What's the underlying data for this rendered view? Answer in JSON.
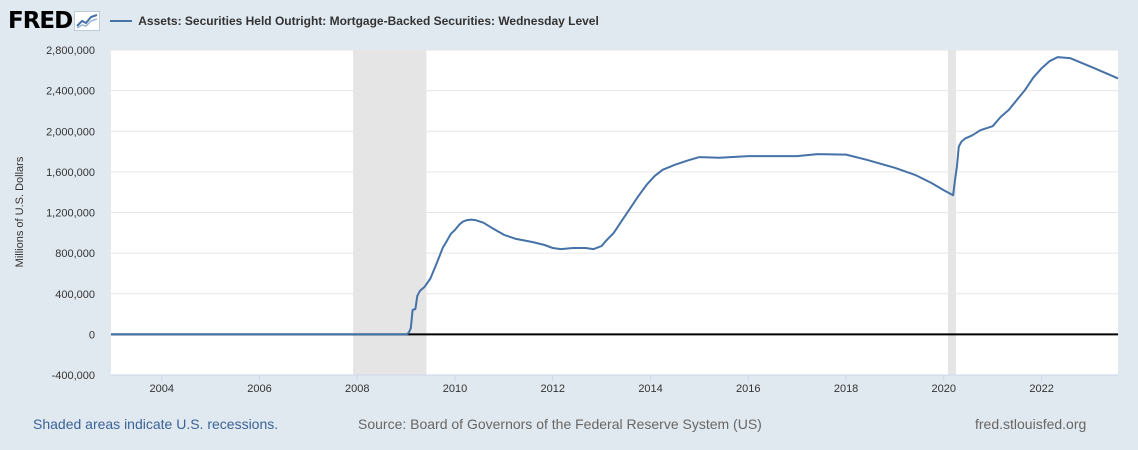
{
  "header": {
    "logo_text": "FRED",
    "logo_icon": "fred-chart-logo-icon"
  },
  "footer": {
    "recession_note": "Shaded areas indicate U.S. recessions.",
    "source": "Source: Board of Governors of the Federal Reserve System (US)",
    "site": "fred.stlouisfed.org"
  },
  "colors": {
    "series": "#4572a7",
    "background": "#e1e9f0",
    "plot_bg": "#ffffff",
    "recession": "#e5e5e5",
    "grid": "#e6e6e6",
    "zero_line": "#000000"
  },
  "chart_data": {
    "type": "line",
    "title": "",
    "xlabel": "",
    "ylabel": "Millions of U.S. Dollars",
    "xlim": [
      "2002-12-18",
      "2023-07-26"
    ],
    "ylim": [
      -400000,
      2800000
    ],
    "y_ticks": [
      -400000,
      0,
      400000,
      800000,
      1200000,
      1600000,
      2000000,
      2400000,
      2800000
    ],
    "y_tick_labels": [
      "-400,000",
      "0",
      "400,000",
      "800,000",
      "1,200,000",
      "1,600,000",
      "2,000,000",
      "2,400,000",
      "2,800,000"
    ],
    "x_ticks": [
      "2004-01-01",
      "2006-01-01",
      "2008-01-01",
      "2010-01-01",
      "2012-01-01",
      "2014-01-01",
      "2016-01-01",
      "2018-01-01",
      "2020-01-01",
      "2022-01-01"
    ],
    "x_tick_labels": [
      "2004",
      "2006",
      "2008",
      "2010",
      "2012",
      "2014",
      "2016",
      "2018",
      "2020",
      "2022"
    ],
    "grid": true,
    "legend": "top-left",
    "recessions": [
      [
        "2007-12-01",
        "2009-06-01"
      ],
      [
        "2020-02-01",
        "2020-04-01"
      ]
    ],
    "series": [
      {
        "name": "Assets: Securities Held Outright: Mortgage-Backed Securities: Wednesday Level",
        "color": "#4572a7",
        "points": [
          [
            "2002-12-18",
            0
          ],
          [
            "2009-01-07",
            0
          ],
          [
            "2009-01-21",
            20000
          ],
          [
            "2009-02-04",
            60000
          ],
          [
            "2009-02-18",
            240000
          ],
          [
            "2009-03-11",
            250000
          ],
          [
            "2009-03-25",
            380000
          ],
          [
            "2009-04-15",
            430000
          ],
          [
            "2009-05-20",
            470000
          ],
          [
            "2009-07-01",
            550000
          ],
          [
            "2009-08-01",
            650000
          ],
          [
            "2009-09-01",
            750000
          ],
          [
            "2009-10-01",
            850000
          ],
          [
            "2009-11-01",
            920000
          ],
          [
            "2009-12-01",
            990000
          ],
          [
            "2010-01-01",
            1030000
          ],
          [
            "2010-02-01",
            1080000
          ],
          [
            "2010-03-01",
            1110000
          ],
          [
            "2010-04-01",
            1125000
          ],
          [
            "2010-05-01",
            1130000
          ],
          [
            "2010-06-01",
            1125000
          ],
          [
            "2010-08-01",
            1100000
          ],
          [
            "2010-10-01",
            1050000
          ],
          [
            "2011-01-01",
            980000
          ],
          [
            "2011-04-01",
            940000
          ],
          [
            "2011-08-01",
            910000
          ],
          [
            "2011-11-01",
            880000
          ],
          [
            "2012-01-01",
            850000
          ],
          [
            "2012-03-01",
            840000
          ],
          [
            "2012-06-01",
            850000
          ],
          [
            "2012-09-01",
            850000
          ],
          [
            "2012-11-01",
            840000
          ],
          [
            "2013-01-01",
            870000
          ],
          [
            "2013-02-01",
            920000
          ],
          [
            "2013-04-01",
            1000000
          ],
          [
            "2013-06-01",
            1120000
          ],
          [
            "2013-08-01",
            1240000
          ],
          [
            "2013-10-01",
            1360000
          ],
          [
            "2013-12-01",
            1470000
          ],
          [
            "2014-02-01",
            1560000
          ],
          [
            "2014-04-01",
            1620000
          ],
          [
            "2014-07-01",
            1670000
          ],
          [
            "2014-10-01",
            1710000
          ],
          [
            "2015-01-01",
            1745000
          ],
          [
            "2015-06-01",
            1740000
          ],
          [
            "2016-01-01",
            1755000
          ],
          [
            "2016-06-01",
            1755000
          ],
          [
            "2017-01-01",
            1755000
          ],
          [
            "2017-06-01",
            1775000
          ],
          [
            "2018-01-01",
            1770000
          ],
          [
            "2018-06-01",
            1720000
          ],
          [
            "2019-01-01",
            1640000
          ],
          [
            "2019-06-01",
            1570000
          ],
          [
            "2019-10-01",
            1490000
          ],
          [
            "2020-01-01",
            1420000
          ],
          [
            "2020-02-26",
            1380000
          ],
          [
            "2020-03-11",
            1370000
          ],
          [
            "2020-03-25",
            1520000
          ],
          [
            "2020-04-08",
            1650000
          ],
          [
            "2020-04-22",
            1850000
          ],
          [
            "2020-05-13",
            1900000
          ],
          [
            "2020-06-10",
            1930000
          ],
          [
            "2020-08-01",
            1960000
          ],
          [
            "2020-10-01",
            2010000
          ],
          [
            "2021-01-01",
            2050000
          ],
          [
            "2021-03-01",
            2140000
          ],
          [
            "2021-05-01",
            2210000
          ],
          [
            "2021-07-01",
            2310000
          ],
          [
            "2021-09-01",
            2410000
          ],
          [
            "2021-11-01",
            2530000
          ],
          [
            "2022-01-01",
            2620000
          ],
          [
            "2022-03-01",
            2690000
          ],
          [
            "2022-05-01",
            2730000
          ],
          [
            "2022-08-01",
            2720000
          ],
          [
            "2022-11-01",
            2670000
          ],
          [
            "2023-02-01",
            2620000
          ],
          [
            "2023-05-01",
            2570000
          ],
          [
            "2023-07-26",
            2520000
          ]
        ]
      }
    ]
  }
}
